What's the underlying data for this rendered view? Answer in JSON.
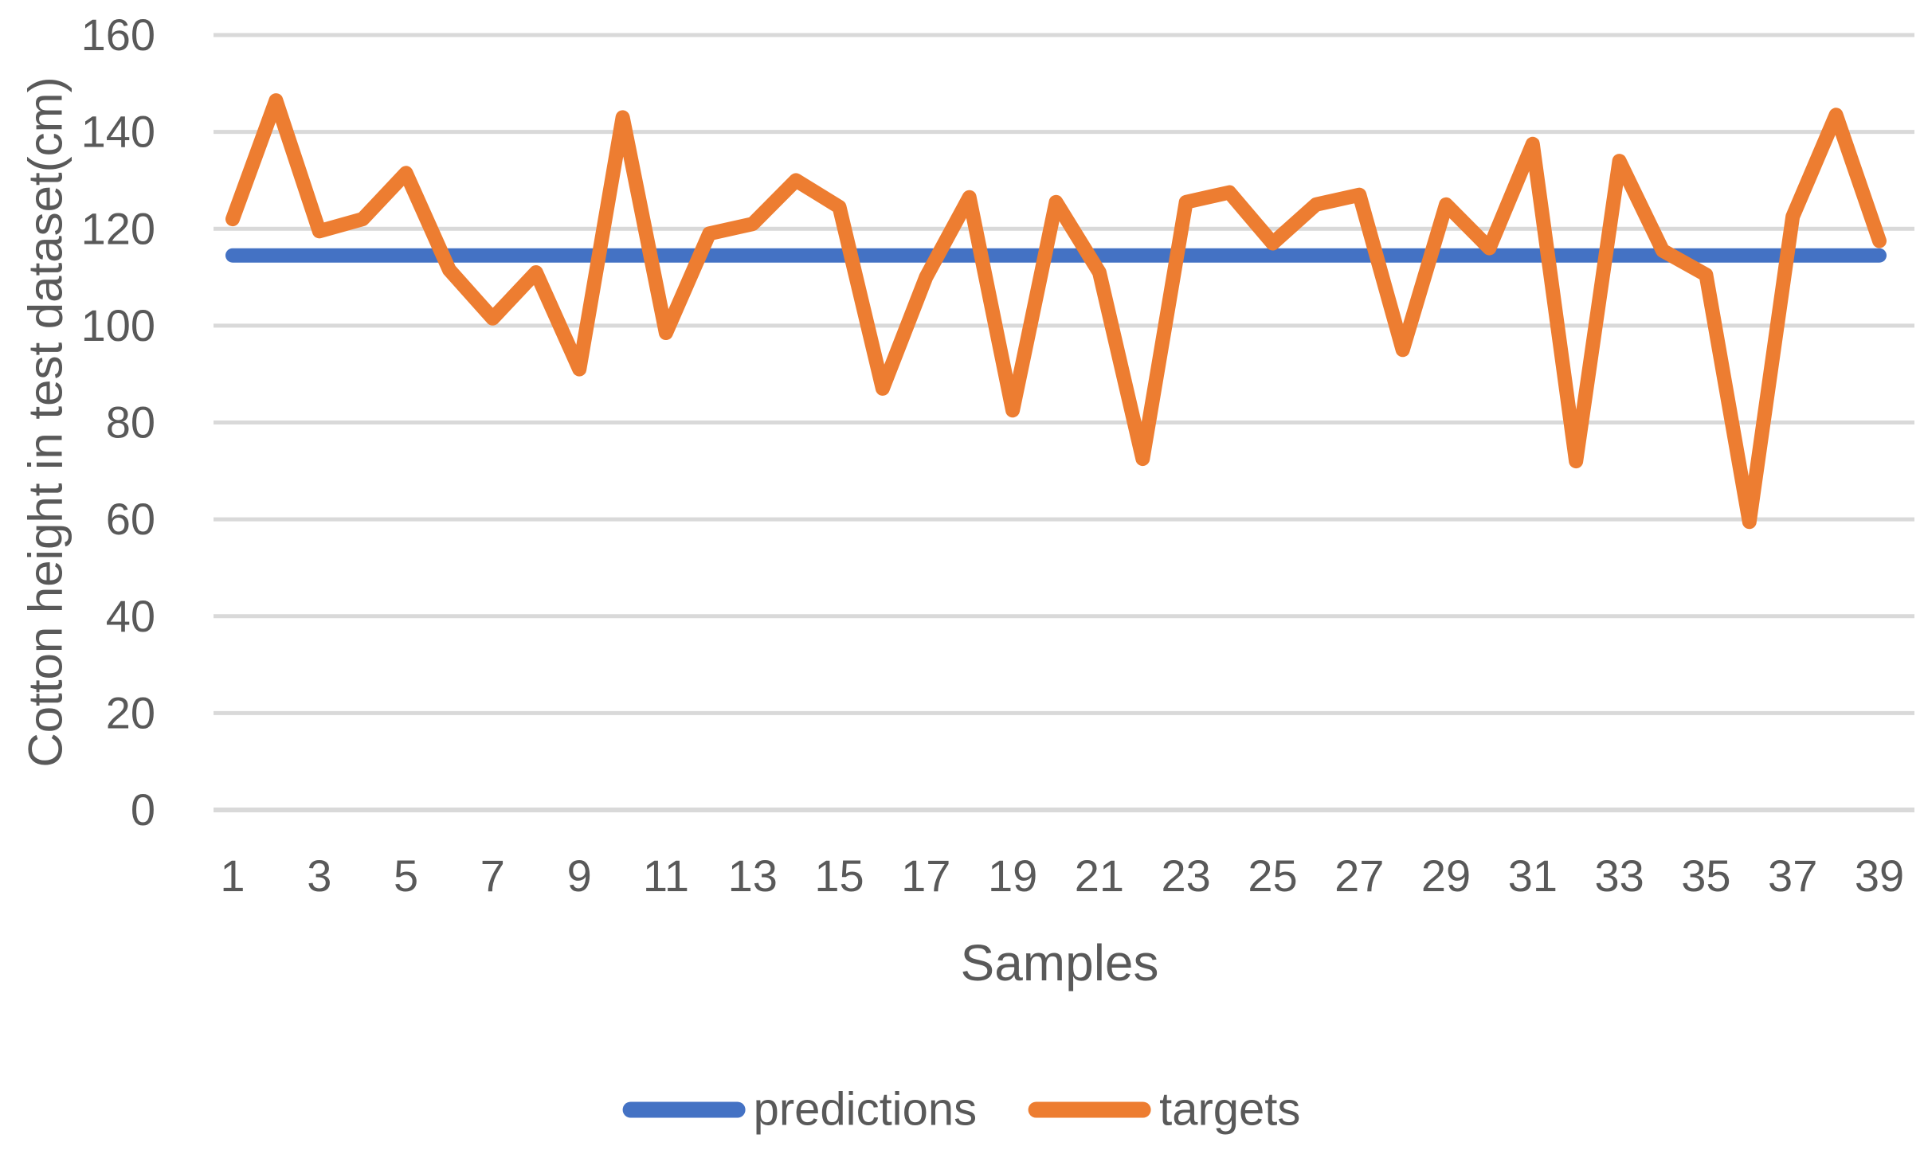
{
  "figure": {
    "background_color": "#FFFFFF",
    "text_color": "#595959",
    "gridline_color": "#D9D9D9",
    "axis_line_color": "#D9D9D9"
  },
  "legend": {
    "position": "bottom-center",
    "items": [
      {
        "label": "predictions",
        "color": "#4472C4",
        "swatch": "line-swatch"
      },
      {
        "label": "targets",
        "color": "#ED7D31",
        "swatch": "line-swatch"
      }
    ]
  },
  "chart_data": {
    "type": "line",
    "title": "",
    "xlabel": "Samples",
    "ylabel": "Cotton height in test dataset(cm)",
    "ylim": [
      0,
      160
    ],
    "yticks": [
      0,
      20,
      40,
      60,
      80,
      100,
      120,
      140,
      160
    ],
    "xticks": [
      1,
      3,
      5,
      7,
      9,
      11,
      13,
      15,
      17,
      19,
      21,
      23,
      25,
      27,
      29,
      31,
      33,
      35,
      37,
      39
    ],
    "x": [
      1,
      2,
      3,
      4,
      5,
      6,
      7,
      8,
      9,
      10,
      11,
      12,
      13,
      14,
      15,
      16,
      17,
      18,
      19,
      20,
      21,
      22,
      23,
      24,
      25,
      26,
      27,
      28,
      29,
      30,
      31,
      32,
      33,
      34,
      35,
      36,
      37,
      38,
      39
    ],
    "grid": "horizontal-only",
    "legend_position": "bottom",
    "series": [
      {
        "name": "predictions",
        "color": "#4472C4",
        "values": [
          114.5,
          114.5,
          114.5,
          114.5,
          114.5,
          114.5,
          114.5,
          114.5,
          114.5,
          114.5,
          114.5,
          114.5,
          114.5,
          114.5,
          114.5,
          114.5,
          114.5,
          114.5,
          114.5,
          114.5,
          114.5,
          114.5,
          114.5,
          114.5,
          114.5,
          114.5,
          114.5,
          114.5,
          114.5,
          114.5,
          114.5,
          114.5,
          114.5,
          114.5,
          114.5,
          114.5,
          114.5,
          114.5,
          114.5
        ]
      },
      {
        "name": "targets",
        "color": "#ED7D31",
        "values": [
          122,
          146.5,
          119.5,
          122,
          131.5,
          111.5,
          101.5,
          111,
          91,
          143,
          98.5,
          119,
          121,
          130,
          124.5,
          87,
          110,
          126.5,
          82.5,
          125.5,
          111,
          72.5,
          125.5,
          127.5,
          117,
          125,
          127,
          95,
          125,
          116,
          137.5,
          72,
          134,
          115.5,
          110.5,
          59.5,
          122.5,
          143.5,
          117.5
        ]
      }
    ]
  }
}
